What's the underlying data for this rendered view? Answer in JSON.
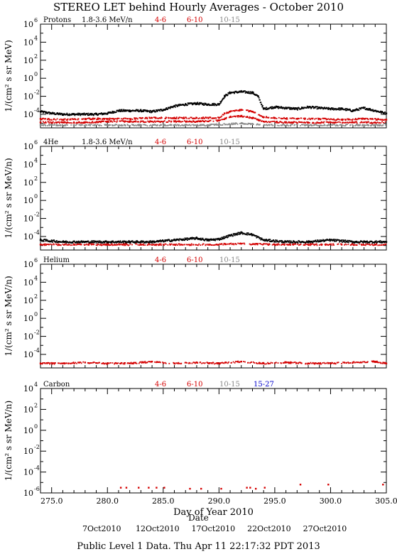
{
  "title": "STEREO LET behind Hourly Averages - October 2010",
  "footer": "Public Level 1 Data. Thu Apr 11 22:17:32 PDT 2013",
  "colors": {
    "black": "#000000",
    "red": "#d40000",
    "gray": "#888888",
    "blue": "#0000cc"
  },
  "chart_data": [
    {
      "type": "scatter",
      "panel": "protons",
      "label": "Protons",
      "energy_label": "1.8-3.6 MeV/n",
      "legend": [
        {
          "text": "4-6",
          "color": "#d40000"
        },
        {
          "text": "6-10",
          "color": "#d40000"
        },
        {
          "text": "10-15",
          "color": "#888888"
        }
      ],
      "ylabel": "1/(cm² s sr MeV)",
      "ylim_log10": [
        -5.5,
        6
      ],
      "ytick_exponents": [
        6,
        4,
        2,
        0,
        -2,
        -4
      ],
      "xlim": [
        274,
        305
      ],
      "series": [
        {
          "name": "1.8-3.6 MeV/n",
          "color": "#000000",
          "x": [
            274,
            275,
            276,
            277,
            278,
            279,
            280,
            281,
            282,
            283,
            284,
            285,
            286,
            287,
            288,
            289,
            290,
            290.5,
            291,
            292,
            293,
            293.5,
            294,
            295,
            296,
            297,
            298,
            299,
            300,
            301,
            302,
            303,
            304,
            305
          ],
          "log10": [
            -3.7,
            -3.9,
            -4.0,
            -4.0,
            -4.0,
            -4.0,
            -3.9,
            -3.6,
            -3.6,
            -3.6,
            -3.7,
            -3.5,
            -3.1,
            -2.9,
            -2.8,
            -2.9,
            -2.9,
            -2.0,
            -1.6,
            -1.5,
            -1.6,
            -2.0,
            -3.4,
            -3.2,
            -3.3,
            -3.4,
            -3.2,
            -3.3,
            -3.4,
            -3.4,
            -3.6,
            -3.3,
            -3.6,
            -3.9
          ]
        },
        {
          "name": "4-6",
          "color": "#d40000",
          "x": [
            274,
            276,
            278,
            280,
            282,
            284,
            286,
            288,
            290,
            290.5,
            291,
            292,
            293,
            294,
            295,
            297,
            299,
            301,
            303,
            305
          ],
          "log10": [
            -4.5,
            -4.6,
            -4.5,
            -4.5,
            -4.5,
            -4.4,
            -4.4,
            -4.4,
            -4.4,
            -3.9,
            -3.7,
            -3.5,
            -3.7,
            -4.3,
            -4.4,
            -4.5,
            -4.5,
            -4.6,
            -4.5,
            -4.6
          ]
        },
        {
          "name": "6-10",
          "color": "#d40000",
          "x": [
            274,
            276,
            278,
            280,
            282,
            284,
            286,
            288,
            290,
            291,
            292,
            293,
            294,
            296,
            298,
            300,
            302,
            304
          ],
          "log10": [
            -4.9,
            -4.9,
            -4.9,
            -4.8,
            -4.8,
            -4.8,
            -4.8,
            -4.8,
            -4.7,
            -4.3,
            -4.2,
            -4.4,
            -4.8,
            -4.9,
            -4.9,
            -4.9,
            -4.9,
            -4.9
          ]
        },
        {
          "name": "10-15",
          "color": "#888888",
          "x": [
            274,
            277,
            280,
            283,
            286,
            289,
            292,
            295,
            298,
            301,
            304
          ],
          "log10": [
            -5.2,
            -5.2,
            -5.2,
            -5.2,
            -5.2,
            -5.2,
            -5.0,
            -5.2,
            -5.2,
            -5.2,
            -5.2
          ]
        }
      ]
    },
    {
      "type": "scatter",
      "panel": "he4",
      "label": "4He",
      "energy_label": "1.8-3.6 MeV/n",
      "legend": [
        {
          "text": "4-6",
          "color": "#d40000"
        },
        {
          "text": "6-10",
          "color": "#d40000"
        },
        {
          "text": "10-15",
          "color": "#888888"
        }
      ],
      "ylabel": "1/(cm² s sr MeV/n)",
      "ylim_log10": [
        -5.5,
        6
      ],
      "ytick_exponents": [
        6,
        4,
        2,
        0,
        -2,
        -4
      ],
      "xlim": [
        274,
        305
      ],
      "series": [
        {
          "name": "1.8-3.6 MeV/n",
          "color": "#000000",
          "x": [
            274,
            276,
            278,
            280,
            282,
            284,
            286,
            287,
            288,
            289,
            290,
            291,
            292,
            293,
            294,
            296,
            298,
            300,
            302,
            304,
            305
          ],
          "log10": [
            -4.4,
            -4.6,
            -4.6,
            -4.6,
            -4.6,
            -4.6,
            -4.4,
            -4.3,
            -4.2,
            -4.4,
            -4.3,
            -3.9,
            -3.6,
            -3.8,
            -4.4,
            -4.6,
            -4.6,
            -4.4,
            -4.6,
            -4.6,
            -4.6
          ]
        },
        {
          "name": "4-6",
          "color": "#d40000",
          "x": [
            274,
            277,
            280,
            283,
            286,
            289,
            292,
            295,
            298,
            301,
            304
          ],
          "log10": [
            -4.9,
            -4.9,
            -4.9,
            -4.9,
            -4.9,
            -4.9,
            -4.8,
            -4.9,
            -4.9,
            -4.9,
            -4.9
          ]
        }
      ]
    },
    {
      "type": "scatter",
      "panel": "helium",
      "label": "Helium",
      "energy_label": "",
      "legend": [
        {
          "text": "4-6",
          "color": "#d40000"
        },
        {
          "text": "6-10",
          "color": "#d40000"
        },
        {
          "text": "10-15",
          "color": "#888888"
        }
      ],
      "ylabel": "1/(cm² s sr MeV/n)",
      "ylim_log10": [
        -5.5,
        6
      ],
      "ytick_exponents": [
        6,
        4,
        2,
        0,
        -2,
        -4
      ],
      "xlim": [
        274,
        305
      ],
      "series": [
        {
          "name": "4-6",
          "color": "#d40000",
          "x": [
            274,
            276,
            278,
            280,
            282,
            284,
            286,
            288,
            290,
            292,
            294,
            296,
            298,
            300,
            302,
            304,
            305
          ],
          "log10": [
            -5.0,
            -5.0,
            -4.9,
            -5.0,
            -5.0,
            -4.8,
            -5.0,
            -4.9,
            -5.0,
            -4.8,
            -5.0,
            -4.9,
            -5.0,
            -5.0,
            -4.9,
            -4.8,
            -5.0
          ]
        }
      ]
    },
    {
      "type": "scatter",
      "panel": "carbon",
      "label": "Carbon",
      "energy_label": "",
      "legend": [
        {
          "text": "4-6",
          "color": "#d40000"
        },
        {
          "text": "6-10",
          "color": "#d40000"
        },
        {
          "text": "10-15",
          "color": "#888888"
        },
        {
          "text": "15-27",
          "color": "#0000cc"
        }
      ],
      "ylabel": "1/(cm² s sr MeV/n)",
      "ylim_log10": [
        -6,
        4
      ],
      "ytick_exponents": [
        4,
        2,
        0,
        -2,
        -4,
        -6
      ],
      "xlim": [
        274,
        305
      ],
      "xlabel": "Day of Year 2010",
      "xticks": [
        275,
        280,
        285,
        290,
        295,
        300,
        305
      ],
      "xtick_labels": [
        "275.0",
        "280.0",
        "285.0",
        "290.0",
        "295.0",
        "300.0",
        "305.0"
      ],
      "series": [
        {
          "name": "4-6",
          "color": "#d40000",
          "x": [
            281.2,
            281.7,
            282.8,
            283.7,
            284.4,
            285.1,
            287.4,
            288.4,
            290.2,
            292.5,
            292.8,
            293.3,
            294.1,
            297.3,
            299.8,
            304.7
          ],
          "log10": [
            -5.5,
            -5.5,
            -5.5,
            -5.5,
            -5.5,
            -5.5,
            -5.6,
            -5.6,
            -5.6,
            -5.5,
            -5.5,
            -5.6,
            -5.5,
            -5.2,
            -5.2,
            -5.2
          ]
        }
      ]
    }
  ],
  "date_axis": {
    "label": "Date",
    "ticks": [
      {
        "x": 280,
        "label": "7Oct2010"
      },
      {
        "x": 285,
        "label": "12Oct2010"
      },
      {
        "x": 290,
        "label": "17Oct2010"
      },
      {
        "x": 295,
        "label": "22Oct2010"
      },
      {
        "x": 300,
        "label": "27Oct2010"
      }
    ]
  }
}
